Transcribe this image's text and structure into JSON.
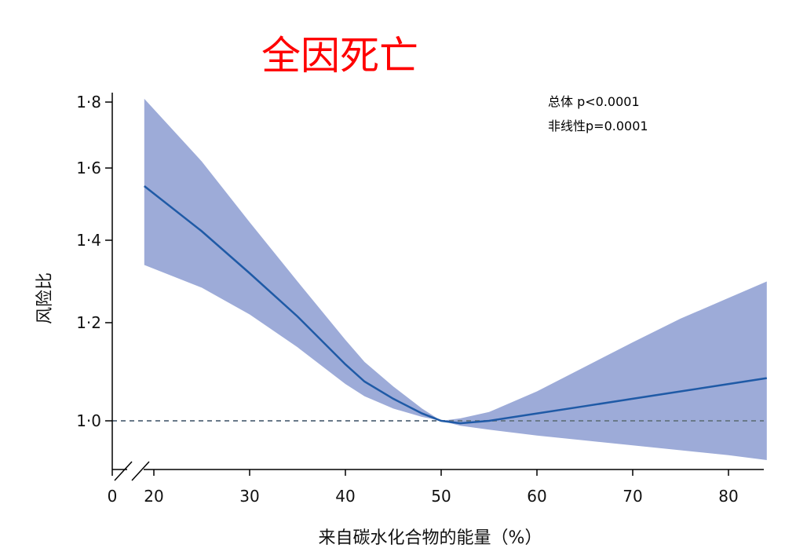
{
  "chart_data": {
    "type": "line",
    "title": "全因死亡",
    "xlabel": "来自碳水化合物的能量（%）",
    "ylabel": "风险比",
    "annotations": [
      "总体 p<0.0001",
      "非线性p=0.0001"
    ],
    "x_axis_break": true,
    "x_ticks": [
      20,
      30,
      40,
      50,
      60,
      70,
      80
    ],
    "x_tick_zero_label": "0",
    "x_tick_labels": [
      "20",
      "30",
      "40",
      "50",
      "60",
      "70",
      "80"
    ],
    "y_ticks": [
      1.0,
      1.2,
      1.4,
      1.6,
      1.8
    ],
    "y_tick_labels": [
      "1·0",
      "1·2",
      "1·4",
      "1·6",
      "1·8"
    ],
    "xlim": [
      15.5,
      84
    ],
    "reference_line": 1.0,
    "series": [
      {
        "x": [
          19,
          25,
          30,
          35,
          40,
          42,
          45,
          48,
          50,
          52,
          55,
          60,
          65,
          70,
          75,
          80,
          84
        ],
        "y": [
          1.55,
          1.425,
          1.32,
          1.215,
          1.115,
          1.08,
          1.045,
          1.015,
          1.0,
          0.995,
          1.0,
          1.015,
          1.03,
          1.045,
          1.06,
          1.075,
          1.087
        ],
        "lower": [
          1.34,
          1.285,
          1.22,
          1.15,
          1.075,
          1.05,
          1.025,
          1.008,
          1.0,
          0.99,
          0.982,
          0.97,
          0.96,
          0.95,
          0.94,
          0.93,
          0.92
        ],
        "upper": [
          1.81,
          1.62,
          1.45,
          1.3,
          1.165,
          1.12,
          1.07,
          1.025,
          1.0,
          1.005,
          1.018,
          1.06,
          1.11,
          1.16,
          1.21,
          1.26,
          1.3
        ]
      }
    ],
    "colors": {
      "line": "#1f5aa6",
      "band": "#9dabd8",
      "reference": "#6a7a8a",
      "title": "#ff0000"
    }
  }
}
